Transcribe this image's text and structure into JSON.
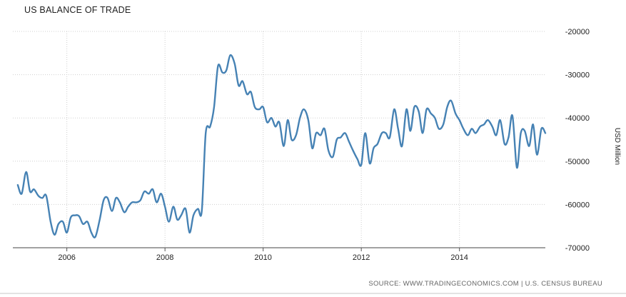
{
  "chart_data": {
    "type": "line",
    "title": "US BALANCE OF TRADE",
    "ylabel": "USD Million",
    "xlabel": "",
    "source": "SOURCE: WWW.TRADINGECONOMICS.COM | U.S. CENSUS BUREAU",
    "xlim": [
      2004.9,
      2015.75
    ],
    "ylim": [
      -70000,
      -20000
    ],
    "x_ticks": [
      {
        "value": 2006,
        "label": "2006"
      },
      {
        "value": 2008,
        "label": "2008"
      },
      {
        "value": 2010,
        "label": "2010"
      },
      {
        "value": 2012,
        "label": "2012"
      },
      {
        "value": 2014,
        "label": "2014"
      }
    ],
    "y_ticks": [
      {
        "value": -20000,
        "label": "-20000"
      },
      {
        "value": -30000,
        "label": "-30000"
      },
      {
        "value": -40000,
        "label": "-40000"
      },
      {
        "value": -50000,
        "label": "-50000"
      },
      {
        "value": -60000,
        "label": "-60000"
      },
      {
        "value": -70000,
        "label": "-70000"
      }
    ],
    "grid": true,
    "line_color": "#4682b4",
    "series": [
      {
        "values": [
          [
            2005.0,
            -55500
          ],
          [
            2005.08,
            -57500
          ],
          [
            2005.17,
            -52500
          ],
          [
            2005.25,
            -57000
          ],
          [
            2005.33,
            -56500
          ],
          [
            2005.42,
            -58000
          ],
          [
            2005.5,
            -58500
          ],
          [
            2005.58,
            -58000
          ],
          [
            2005.67,
            -64000
          ],
          [
            2005.75,
            -67000
          ],
          [
            2005.83,
            -64500
          ],
          [
            2005.92,
            -64000
          ],
          [
            2006.0,
            -66500
          ],
          [
            2006.08,
            -63000
          ],
          [
            2006.17,
            -62500
          ],
          [
            2006.25,
            -62700
          ],
          [
            2006.33,
            -64500
          ],
          [
            2006.42,
            -64000
          ],
          [
            2006.5,
            -66500
          ],
          [
            2006.58,
            -67500
          ],
          [
            2006.67,
            -63500
          ],
          [
            2006.75,
            -59000
          ],
          [
            2006.83,
            -58500
          ],
          [
            2006.92,
            -61500
          ],
          [
            2007.0,
            -58500
          ],
          [
            2007.08,
            -59500
          ],
          [
            2007.17,
            -61800
          ],
          [
            2007.25,
            -60500
          ],
          [
            2007.33,
            -59500
          ],
          [
            2007.42,
            -59500
          ],
          [
            2007.5,
            -59000
          ],
          [
            2007.58,
            -57000
          ],
          [
            2007.67,
            -57500
          ],
          [
            2007.75,
            -56500
          ],
          [
            2007.83,
            -59500
          ],
          [
            2007.92,
            -57500
          ],
          [
            2008.0,
            -60500
          ],
          [
            2008.08,
            -64000
          ],
          [
            2008.17,
            -60500
          ],
          [
            2008.25,
            -63500
          ],
          [
            2008.33,
            -62500
          ],
          [
            2008.42,
            -61000
          ],
          [
            2008.5,
            -66500
          ],
          [
            2008.58,
            -62500
          ],
          [
            2008.67,
            -61000
          ],
          [
            2008.75,
            -61500
          ],
          [
            2008.83,
            -43500
          ],
          [
            2008.92,
            -42000
          ],
          [
            2009.0,
            -37500
          ],
          [
            2009.08,
            -28000
          ],
          [
            2009.17,
            -29500
          ],
          [
            2009.25,
            -29000
          ],
          [
            2009.33,
            -25500
          ],
          [
            2009.42,
            -27500
          ],
          [
            2009.5,
            -32500
          ],
          [
            2009.58,
            -31500
          ],
          [
            2009.67,
            -34500
          ],
          [
            2009.75,
            -34000
          ],
          [
            2009.83,
            -37500
          ],
          [
            2009.92,
            -38000
          ],
          [
            2010.0,
            -37500
          ],
          [
            2010.08,
            -41000
          ],
          [
            2010.17,
            -40000
          ],
          [
            2010.25,
            -42000
          ],
          [
            2010.33,
            -41000
          ],
          [
            2010.42,
            -46500
          ],
          [
            2010.5,
            -40500
          ],
          [
            2010.58,
            -45000
          ],
          [
            2010.67,
            -44000
          ],
          [
            2010.75,
            -40000
          ],
          [
            2010.83,
            -38000
          ],
          [
            2010.92,
            -40500
          ],
          [
            2011.0,
            -47000
          ],
          [
            2011.08,
            -43500
          ],
          [
            2011.17,
            -44000
          ],
          [
            2011.25,
            -42500
          ],
          [
            2011.33,
            -47500
          ],
          [
            2011.42,
            -49000
          ],
          [
            2011.5,
            -45000
          ],
          [
            2011.58,
            -44500
          ],
          [
            2011.67,
            -43500
          ],
          [
            2011.75,
            -45500
          ],
          [
            2011.83,
            -47500
          ],
          [
            2011.92,
            -49500
          ],
          [
            2012.0,
            -50800
          ],
          [
            2012.08,
            -43500
          ],
          [
            2012.17,
            -50500
          ],
          [
            2012.25,
            -47000
          ],
          [
            2012.33,
            -46000
          ],
          [
            2012.42,
            -43500
          ],
          [
            2012.5,
            -43500
          ],
          [
            2012.58,
            -44500
          ],
          [
            2012.67,
            -38000
          ],
          [
            2012.75,
            -42500
          ],
          [
            2012.83,
            -46500
          ],
          [
            2012.92,
            -38000
          ],
          [
            2013.0,
            -43000
          ],
          [
            2013.08,
            -37500
          ],
          [
            2013.17,
            -38500
          ],
          [
            2013.25,
            -43500
          ],
          [
            2013.33,
            -38000
          ],
          [
            2013.42,
            -39000
          ],
          [
            2013.5,
            -40000
          ],
          [
            2013.58,
            -42500
          ],
          [
            2013.67,
            -41500
          ],
          [
            2013.75,
            -37500
          ],
          [
            2013.83,
            -36000
          ],
          [
            2013.92,
            -39000
          ],
          [
            2014.0,
            -40500
          ],
          [
            2014.08,
            -42500
          ],
          [
            2014.17,
            -44000
          ],
          [
            2014.25,
            -42500
          ],
          [
            2014.33,
            -43500
          ],
          [
            2014.42,
            -42000
          ],
          [
            2014.5,
            -41500
          ],
          [
            2014.58,
            -40500
          ],
          [
            2014.67,
            -42000
          ],
          [
            2014.75,
            -44000
          ],
          [
            2014.83,
            -40500
          ],
          [
            2014.92,
            -46000
          ],
          [
            2015.0,
            -44500
          ],
          [
            2015.08,
            -39500
          ],
          [
            2015.17,
            -51500
          ],
          [
            2015.25,
            -43500
          ],
          [
            2015.33,
            -43000
          ],
          [
            2015.42,
            -46500
          ],
          [
            2015.5,
            -41500
          ],
          [
            2015.58,
            -48500
          ],
          [
            2015.67,
            -42500
          ],
          [
            2015.75,
            -43500
          ]
        ]
      }
    ]
  }
}
